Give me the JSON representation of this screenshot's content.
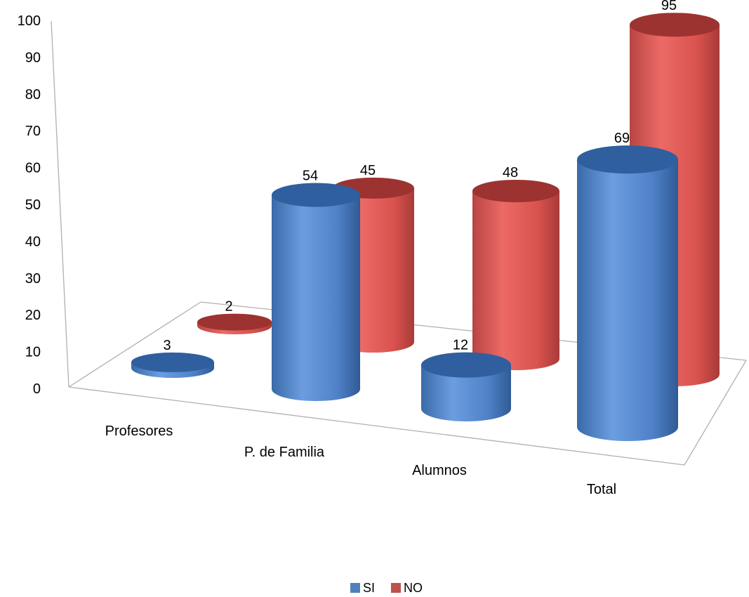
{
  "chart_data": {
    "type": "bar",
    "style": "3d-cylinder",
    "title": "",
    "xlabel": "",
    "ylabel": "",
    "categories": [
      "Profesores",
      "P. de Familia",
      "Alumnos",
      "Total"
    ],
    "series": [
      {
        "name": "SI",
        "values": [
          3,
          54,
          12,
          69
        ],
        "color": "#4f81bd"
      },
      {
        "name": "NO",
        "values": [
          2,
          45,
          48,
          95
        ],
        "color": "#c0504d"
      }
    ],
    "ylim": [
      0,
      100
    ],
    "yticks": [
      "0",
      "10",
      "20",
      "30",
      "40",
      "50",
      "60",
      "70",
      "80",
      "90",
      "100"
    ],
    "grid": false,
    "data_labels": true,
    "legend": {
      "position": "bottom",
      "entries": [
        "SI",
        "NO"
      ]
    }
  }
}
